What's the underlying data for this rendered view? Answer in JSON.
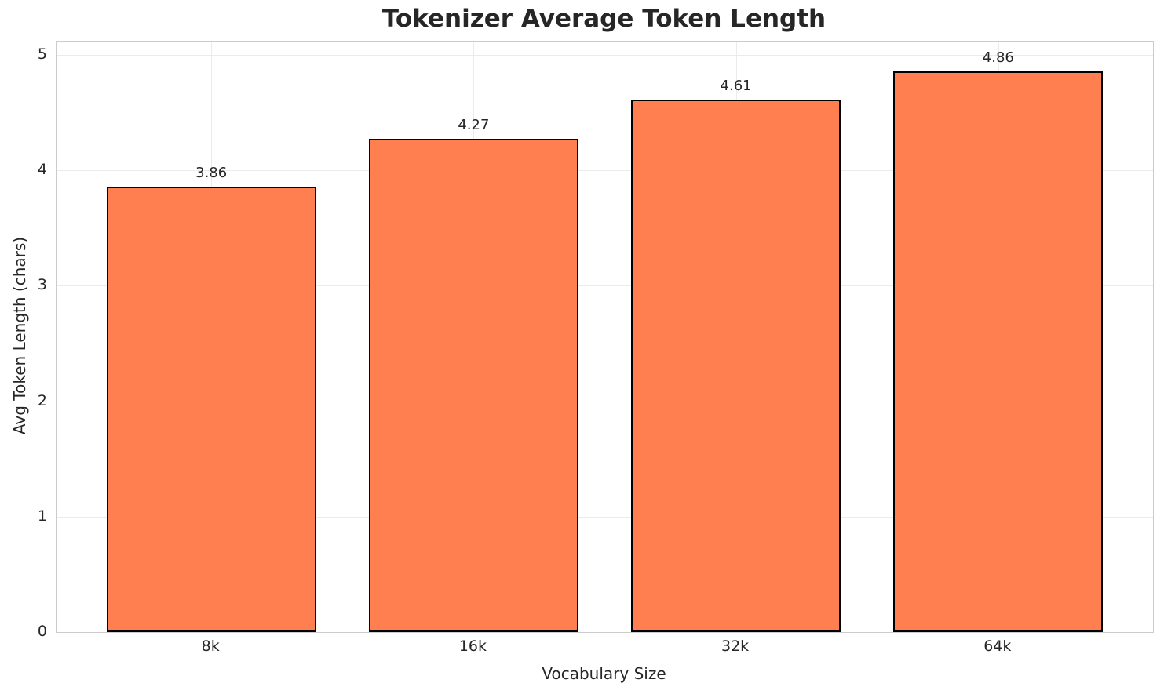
{
  "chart_data": {
    "type": "bar",
    "title": "Tokenizer Average Token Length",
    "xlabel": "Vocabulary Size",
    "ylabel": "Avg Token Length (chars)",
    "categories": [
      "8k",
      "16k",
      "32k",
      "64k"
    ],
    "values": [
      3.86,
      4.27,
      4.61,
      4.86
    ],
    "value_labels": [
      "3.86",
      "4.27",
      "4.61",
      "4.86"
    ],
    "yticks": [
      0,
      1,
      2,
      3,
      4,
      5
    ],
    "ylim": [
      0,
      5.115
    ],
    "bar_width_fraction": 0.8,
    "grid": "on",
    "legend": "none",
    "colors": {
      "bar_fill": "#FF7F50",
      "bar_edge": "#000000",
      "grid": "#ebebeb",
      "spine": "#cccccc",
      "text": "#262626",
      "background": "#ffffff"
    }
  }
}
